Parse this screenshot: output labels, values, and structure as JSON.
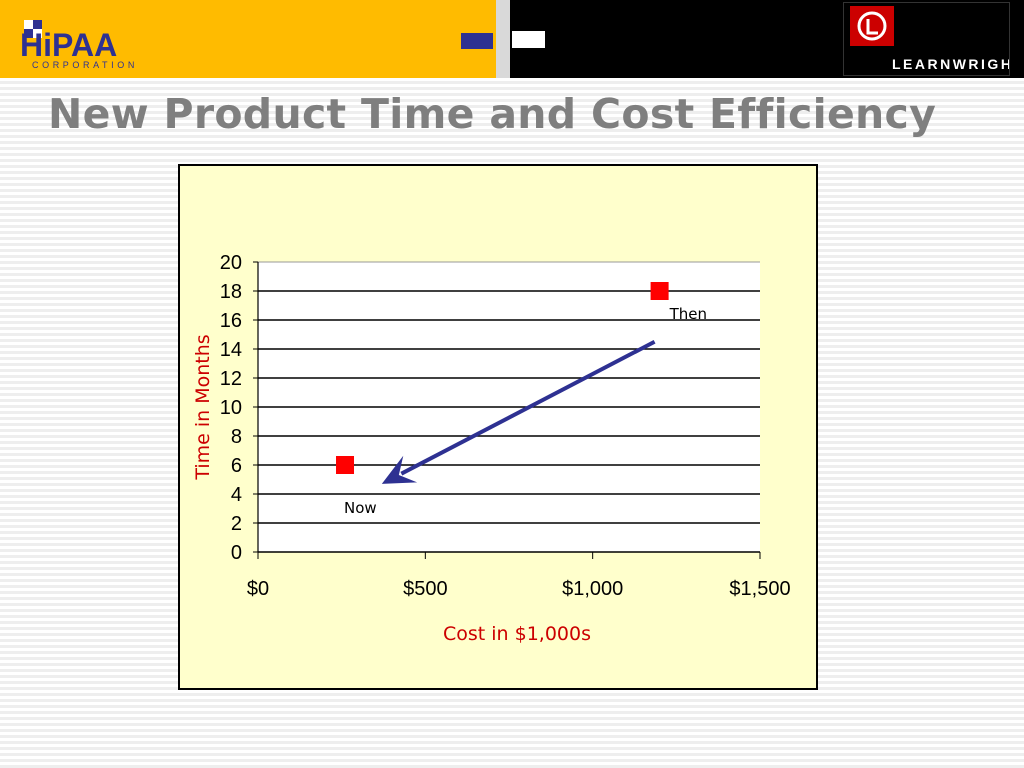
{
  "header": {
    "left_logo": {
      "wordmark": "HiPAA",
      "tagline": "CORPORATION"
    },
    "right_logo": {
      "wordmark": "LEARNWRIGHT"
    }
  },
  "slide": {
    "title": "New Product Time and Cost Efficiency"
  },
  "colors": {
    "banner_yellow": "#ffbb00",
    "brand_blue": "#2e3192",
    "title_gray": "#7f7f7f",
    "plot_background": "#ffffcc",
    "marker_red": "#ff0000",
    "axis_title_red": "#cc0000",
    "arrow_blue": "#2e3192"
  },
  "chart_data": {
    "type": "scatter",
    "title": "",
    "xlabel": "Cost in $1,000s",
    "ylabel": "Time in Months",
    "xlim": [
      0,
      1500
    ],
    "ylim": [
      0,
      20
    ],
    "x_ticks": [
      0,
      500,
      1000,
      1500
    ],
    "x_tick_labels": [
      "$0",
      "$500",
      "$1,000",
      "$1,500"
    ],
    "y_ticks": [
      0,
      2,
      4,
      6,
      8,
      10,
      12,
      14,
      16,
      18,
      20
    ],
    "y_tick_labels": [
      "0",
      "2",
      "4",
      "6",
      "8",
      "10",
      "12",
      "14",
      "16",
      "18",
      "20"
    ],
    "grid": {
      "horizontal": true,
      "vertical": false
    },
    "legend": "none",
    "points": [
      {
        "label": "Then",
        "x": 1200,
        "y": 18
      },
      {
        "label": "Now",
        "x": 260,
        "y": 6
      }
    ],
    "annotations": [
      {
        "type": "arrow",
        "from": {
          "x": 1185,
          "y": 14.5
        },
        "to": {
          "x": 370,
          "y": 4.7
        }
      }
    ]
  }
}
